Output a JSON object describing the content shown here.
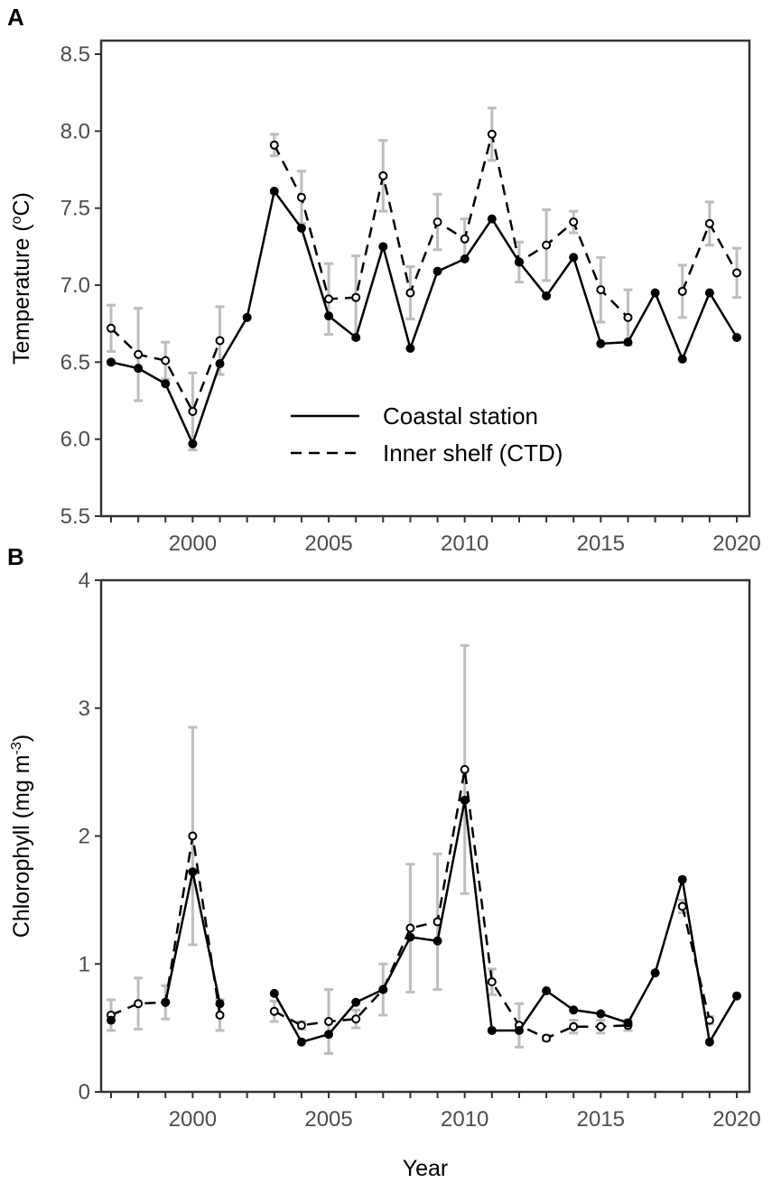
{
  "chart_data": [
    {
      "panel": "A",
      "type": "line",
      "ylabel": "Temperature (oC)",
      "ylabel_main": "Temperature (",
      "ylabel_sup": "o",
      "ylabel_end": "C)",
      "xlabel": "",
      "ylim": [
        5.5,
        8.5
      ],
      "xlim": [
        1997,
        2020
      ],
      "yticks": [
        "5.5",
        "6.0",
        "6.5",
        "7.0",
        "7.5",
        "8.0",
        "8.5"
      ],
      "xticks": [
        "2000",
        "2005",
        "2010",
        "2015",
        "2020"
      ],
      "x": [
        1997,
        1998,
        1999,
        2000,
        2001,
        2002,
        2003,
        2004,
        2005,
        2006,
        2007,
        2008,
        2009,
        2010,
        2011,
        2012,
        2013,
        2014,
        2015,
        2016,
        2017,
        2018,
        2019,
        2020
      ],
      "series": [
        {
          "name": "Coastal station",
          "style": "solid",
          "values": [
            6.5,
            6.46,
            6.36,
            5.97,
            6.49,
            6.79,
            7.61,
            7.37,
            6.8,
            6.66,
            7.25,
            6.59,
            7.09,
            7.17,
            7.43,
            7.15,
            6.93,
            7.18,
            6.62,
            6.63,
            6.95,
            6.52,
            6.95,
            6.66
          ]
        },
        {
          "name": "Inner shelf (CTD)",
          "style": "dashed",
          "values": [
            6.72,
            6.55,
            6.51,
            6.18,
            6.64,
            null,
            7.91,
            7.57,
            6.91,
            6.92,
            7.71,
            6.95,
            7.41,
            7.3,
            7.98,
            7.15,
            7.26,
            7.41,
            6.97,
            6.79,
            null,
            6.96,
            7.4,
            7.08
          ],
          "errors": [
            0.15,
            0.3,
            0.12,
            0.25,
            0.22,
            null,
            0.07,
            0.17,
            0.23,
            0.27,
            0.23,
            0.17,
            0.18,
            0.13,
            0.17,
            0.13,
            0.23,
            0.07,
            0.21,
            0.18,
            null,
            0.17,
            0.14,
            0.16
          ]
        }
      ],
      "legend": "center"
    },
    {
      "panel": "B",
      "type": "line",
      "ylabel": "Chlorophyll (mg m-3)",
      "ylabel_main": "Chlorophyll (mg m",
      "ylabel_sup": "-3",
      "ylabel_end": ")",
      "xlabel": "Year",
      "ylim": [
        0,
        4
      ],
      "xlim": [
        1997,
        2020
      ],
      "yticks": [
        "0",
        "1",
        "2",
        "3",
        "4"
      ],
      "xticks": [
        "2000",
        "2005",
        "2010",
        "2015",
        "2020"
      ],
      "x": [
        1997,
        1998,
        1999,
        2000,
        2001,
        2002,
        2003,
        2004,
        2005,
        2006,
        2007,
        2008,
        2009,
        2010,
        2011,
        2012,
        2013,
        2014,
        2015,
        2016,
        2017,
        2018,
        2019,
        2020
      ],
      "series": [
        {
          "name": "Coastal station",
          "style": "solid",
          "values": [
            0.56,
            null,
            0.7,
            1.72,
            0.69,
            null,
            0.77,
            0.39,
            0.45,
            0.7,
            0.8,
            1.21,
            1.18,
            2.28,
            0.48,
            0.48,
            0.79,
            0.64,
            0.61,
            0.54,
            0.93,
            1.66,
            0.39,
            0.75
          ]
        },
        {
          "name": "Inner shelf (CTD)",
          "style": "dashed",
          "values": [
            0.6,
            0.69,
            0.7,
            2.0,
            0.6,
            null,
            0.63,
            0.52,
            0.55,
            0.57,
            0.8,
            1.28,
            1.33,
            2.52,
            0.86,
            0.52,
            0.42,
            0.51,
            0.51,
            0.52,
            null,
            1.45,
            0.56,
            null
          ],
          "errors": [
            0.12,
            0.2,
            0.13,
            0.85,
            0.12,
            null,
            0.08,
            0.03,
            0.25,
            0.07,
            0.2,
            0.5,
            0.53,
            0.97,
            0.1,
            0.17,
            0.02,
            0.05,
            0.05,
            0.04,
            null,
            0.05,
            0.03,
            null
          ]
        }
      ]
    }
  ],
  "panel_labels": [
    "A",
    "B"
  ]
}
